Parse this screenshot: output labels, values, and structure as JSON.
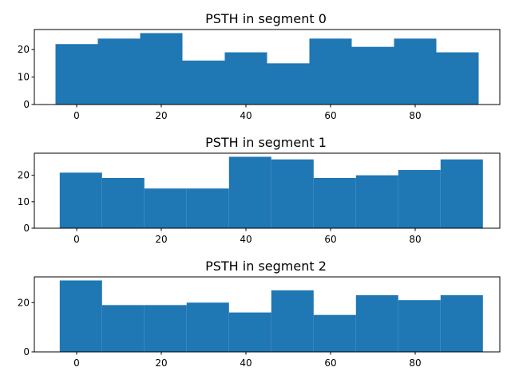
{
  "chart_data": [
    {
      "type": "bar",
      "title": "PSTH in segment 0",
      "bin_edges": [
        -5,
        5,
        15,
        25,
        35,
        45,
        55,
        65,
        75,
        85,
        95
      ],
      "values": [
        22,
        24,
        26,
        16,
        19,
        15,
        24,
        21,
        24,
        19
      ],
      "xlim": [
        -10,
        100
      ],
      "ylim": [
        0,
        27.3
      ],
      "xticks": [
        0,
        20,
        40,
        60,
        80
      ],
      "xtick_labels": [
        "0",
        "20",
        "40",
        "60",
        "80"
      ],
      "yticks": [
        0,
        10,
        20
      ],
      "ytick_labels": [
        "0",
        "10",
        "20"
      ],
      "color": "#1f77b4",
      "grid": false
    },
    {
      "type": "bar",
      "title": "PSTH in segment 1",
      "bin_edges": [
        -4,
        6,
        16,
        26,
        36,
        46,
        56,
        66,
        76,
        86,
        96
      ],
      "values": [
        21,
        19,
        15,
        15,
        27,
        26,
        19,
        20,
        22,
        26
      ],
      "xlim": [
        -10,
        100
      ],
      "ylim": [
        0,
        28.35
      ],
      "xticks": [
        0,
        20,
        40,
        60,
        80
      ],
      "xtick_labels": [
        "0",
        "20",
        "40",
        "60",
        "80"
      ],
      "yticks": [
        0,
        10,
        20
      ],
      "ytick_labels": [
        "0",
        "10",
        "20"
      ],
      "color": "#1f77b4",
      "grid": false
    },
    {
      "type": "bar",
      "title": "PSTH in segment 2",
      "bin_edges": [
        -4,
        6,
        16,
        26,
        36,
        46,
        56,
        66,
        76,
        86,
        96
      ],
      "values": [
        29,
        19,
        19,
        20,
        16,
        25,
        15,
        23,
        21,
        23
      ],
      "xlim": [
        -10,
        100
      ],
      "ylim": [
        0,
        30.45
      ],
      "xticks": [
        0,
        20,
        40,
        60,
        80
      ],
      "xtick_labels": [
        "0",
        "20",
        "40",
        "60",
        "80"
      ],
      "yticks": [
        0,
        20
      ],
      "ytick_labels": [
        "0",
        "20"
      ],
      "color": "#1f77b4",
      "grid": false
    }
  ]
}
